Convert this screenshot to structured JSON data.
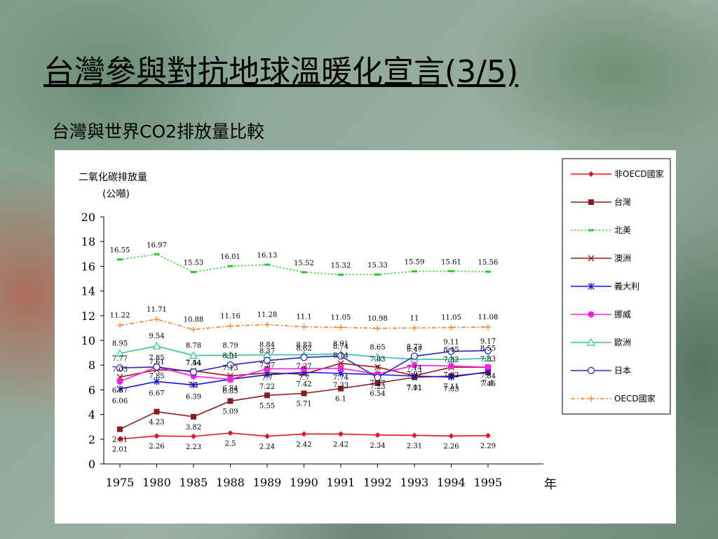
{
  "slide": {
    "title": "台灣參與對抗地球溫暖化宣言(3/5)",
    "subtitle": "台灣與世界CO2排放量比較"
  },
  "chart_data": {
    "type": "line",
    "ylabel": "二氧化碳排放量",
    "yunit": "(公噸)",
    "xlabel": "年",
    "ylim": [
      0,
      20
    ],
    "yticks": [
      0,
      2,
      4,
      6,
      8,
      10,
      12,
      14,
      16,
      18,
      20
    ],
    "categories": [
      "1975",
      "1980",
      "1985",
      "1988",
      "1989",
      "1990",
      "1991",
      "1992",
      "1993",
      "1994",
      "1995"
    ],
    "grid": false,
    "legend_position": "right",
    "series": [
      {
        "name": "非OECD國家",
        "color": "#e8141b",
        "marker": "diamond",
        "dash": "",
        "values": [
          2.01,
          2.26,
          2.23,
          2.5,
          2.24,
          2.42,
          2.42,
          2.34,
          2.31,
          2.26,
          2.29
        ],
        "labels": [
          "2.01",
          "2.26",
          "2.23",
          "2.5",
          "2.24",
          "2.42",
          "2.42",
          "2.34",
          "2.31",
          "2.26",
          "2.29"
        ]
      },
      {
        "name": "台灣",
        "color": "#8b1a1a",
        "marker": "square",
        "dash": "",
        "values": [
          2.81,
          4.23,
          3.82,
          5.09,
          5.55,
          5.71,
          6.1,
          6.54,
          7.01,
          7.11,
          7.4
        ],
        "labels": [
          "2.81",
          "4.23",
          "3.82",
          "5.09",
          "5.55",
          "5.71",
          "6.1",
          "6.54",
          "7.01",
          "7.11",
          "7.4"
        ]
      },
      {
        "name": "北美",
        "color": "#22cc22",
        "marker": "dash",
        "dash": "2,3",
        "values": [
          16.55,
          16.97,
          15.53,
          16.01,
          16.13,
          15.52,
          15.32,
          15.33,
          15.59,
          15.61,
          15.56
        ],
        "labels": [
          "16.55",
          "16.97",
          "15.53",
          "16.01",
          "16.13",
          "15.52",
          "15.32",
          "15.33",
          "15.59",
          "15.61",
          "15.56"
        ]
      },
      {
        "name": "澳洲",
        "color": "#a01818",
        "marker": "x",
        "dash": "",
        "values": [
          7.03,
          7.61,
          7.54,
          7.13,
          7.37,
          7.27,
          8.14,
          7.83,
          7.14,
          7.82,
          7.83
        ],
        "labels": [
          "7.03",
          "7.61",
          "7.54",
          "7.13",
          "7.37",
          "7.27",
          "8.14",
          "7.83",
          "7.14",
          "7.82",
          "7.83"
        ]
      },
      {
        "name": "義大利",
        "color": "#1414e0",
        "marker": "star",
        "dash": "",
        "values": [
          6.06,
          6.67,
          6.39,
          6.85,
          7.22,
          7.42,
          7.33,
          7.23,
          7.11,
          7.03,
          7.45
        ],
        "labels": [
          "6.06",
          "6.67",
          "6.39",
          "6.85",
          "7.22",
          "7.42",
          "7.33",
          "7.23",
          "7.11",
          "7.03",
          "7.45"
        ]
      },
      {
        "name": "挪威",
        "color": "#ff1edc",
        "marker": "circle",
        "dash": "",
        "values": [
          6.67,
          7.85,
          7.1,
          6.84,
          7.7,
          7.7,
          7.74,
          7.27,
          7.97,
          7.92,
          7.84
        ],
        "labels": [
          "6.67",
          "7.85",
          "7.1",
          "6.84",
          "7.7",
          "7.7",
          "7.74",
          "7.27",
          "7.97",
          "7.92",
          "7.84"
        ]
      },
      {
        "name": "歐洲",
        "color": "#2fc4a0",
        "marker": "triangle",
        "dash": "",
        "values": [
          8.95,
          9.54,
          8.78,
          8.79,
          8.84,
          8.83,
          8.91,
          8.65,
          8.47,
          8.45,
          8.55
        ],
        "labels": [
          "8.95",
          "9.54",
          "8.78",
          "8.79",
          "8.84",
          "8.83",
          "8.91",
          "8.65",
          "8.47",
          "8.45",
          "8.55"
        ]
      },
      {
        "name": "日本",
        "color": "#2a2ab8",
        "marker": "ocircle",
        "dash": "",
        "values": [
          7.77,
          7.85,
          7.44,
          8.01,
          8.37,
          8.62,
          8.74,
          7.0,
          8.72,
          9.11,
          9.17
        ],
        "labels": [
          "7.77",
          "7.85",
          "7.44",
          "8.01",
          "8.37",
          "8.62",
          "8.74",
          "7",
          "8.72",
          "9.11",
          "9.17"
        ]
      },
      {
        "name": "OECD國家",
        "color": "#ff7a1a",
        "marker": "plus",
        "dash": "6,3,2,3",
        "values": [
          11.22,
          11.71,
          10.88,
          11.16,
          11.28,
          11.1,
          11.05,
          10.98,
          11.0,
          11.05,
          11.08
        ],
        "labels": [
          "11.22",
          "11.71",
          "10.88",
          "11.16",
          "11.28",
          "11.1",
          "11.05",
          "10.98",
          "11",
          "11.05",
          "11.08"
        ]
      }
    ]
  }
}
